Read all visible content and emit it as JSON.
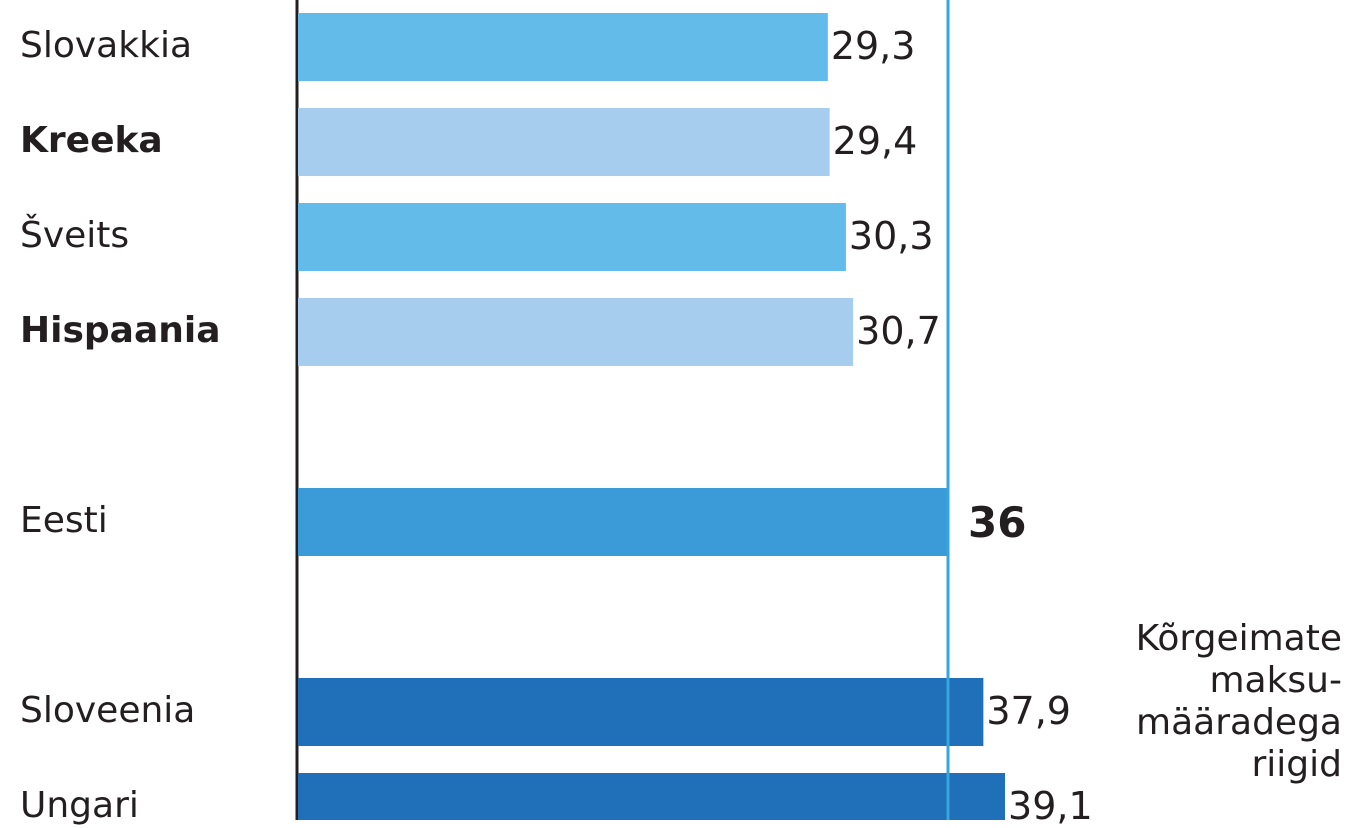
{
  "chart_data": {
    "type": "bar",
    "orientation": "horizontal",
    "categories": [
      "Slovakkia",
      "Kreeka",
      "Šveits",
      "Hispaania",
      "Eesti",
      "Sloveenia",
      "Ungari"
    ],
    "bold_categories": [
      "Kreeka",
      "Hispaania"
    ],
    "values": [
      29.3,
      29.4,
      30.3,
      30.7,
      36,
      37.9,
      39.1
    ],
    "value_labels": [
      "29,3",
      "29,4",
      "30,3",
      "30,7",
      "36",
      "37,9",
      "39,1"
    ],
    "highlight_category": "Eesti",
    "reference_line": 36,
    "bar_colors": [
      "#62bbe9",
      "#a7cdee",
      "#62bbe9",
      "#a7cdee",
      "#3a9bd8",
      "#1f70b8",
      "#1f70b8"
    ],
    "reference_line_color": "#36a6de",
    "axis_color": "#231f20",
    "annotation_lines": [
      "Kõrgeimate",
      "maksu-",
      "määradega",
      "riigid"
    ]
  }
}
